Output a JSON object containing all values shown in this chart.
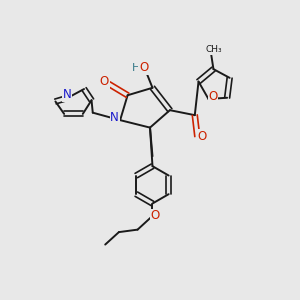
{
  "bg_color": "#e8e8e8",
  "bond_color": "#1a1a1a",
  "N_color": "#1a1acc",
  "O_color": "#cc2200",
  "H_color": "#337788",
  "figsize": [
    3.0,
    3.0
  ],
  "dpi": 100,
  "xlim": [
    0,
    12
  ],
  "ylim": [
    0,
    12
  ]
}
